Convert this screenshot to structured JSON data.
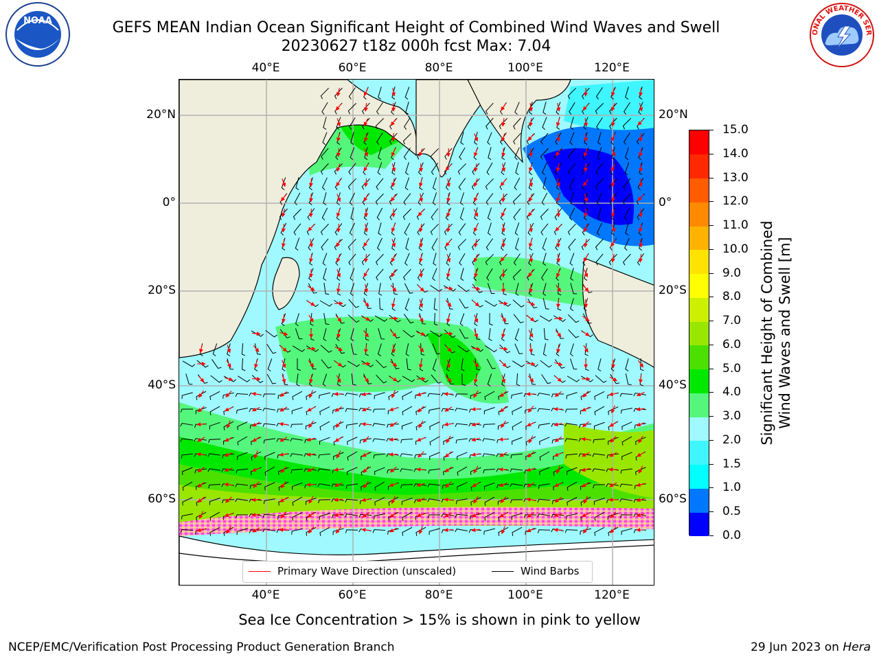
{
  "header": {
    "title_line1": "GEFS MEAN Indian Ocean Significant Height of Combined Wind Waves and Swell",
    "title_line2": "20230627 t18z 000h fcst   Max: 7.04"
  },
  "logos": {
    "noaa": {
      "text": "NOAA",
      "ring_text": "NATIONAL OCEANIC AND ATMOSPHERIC ADMINISTRATION · U.S. DEPARTMENT OF COMMERCE"
    },
    "nws": {
      "ring_text": "NATIONAL WEATHER SERVICE"
    }
  },
  "map": {
    "lon_labels": [
      "40°E",
      "60°E",
      "80°E",
      "100°E",
      "120°E"
    ],
    "lat_labels": [
      "20°N",
      "0°",
      "20°S",
      "40°S",
      "60°S"
    ],
    "extent": {
      "lon_min": 20,
      "lon_max": 130,
      "lat_min": -75,
      "lat_max": 26
    },
    "colors": {
      "land": "#efeedd",
      "ocean_2_3m": "#9ff9ff",
      "ocean_3_4m": "#54f77c",
      "ocean_4_5m": "#00e800",
      "grid": "#b0b0b0",
      "wave_arrow": "#ff0000",
      "wind_barb": "#000000"
    }
  },
  "colorbar": {
    "label_line1": "Significant Height of Combined",
    "label_line2": "Wind Waves and Swell [m]",
    "ticks": [
      "0.0",
      "0.5",
      "1.0",
      "1.5",
      "2.0",
      "3.0",
      "4.0",
      "5.0",
      "6.0",
      "7.0",
      "8.0",
      "9.0",
      "10.0",
      "11.0",
      "12.0",
      "13.0",
      "14.0",
      "15.0"
    ],
    "colors": [
      "#0000ff",
      "#0077ff",
      "#00ffff",
      "#3ff5ff",
      "#9ff9ff",
      "#54f77c",
      "#00e800",
      "#4ce000",
      "#99e600",
      "#ccf000",
      "#ffff00",
      "#ffe300",
      "#ffb300",
      "#ff8a00",
      "#ff5c00",
      "#ff2900",
      "#ff0000"
    ]
  },
  "legend": {
    "wave_label": "Primary Wave Direction (unscaled)",
    "wind_label": "Wind Barbs"
  },
  "note": "Sea Ice Concentration > 15% is shown in pink to yellow",
  "footer": {
    "left": "NCEP/EMC/Verification Post Processing Product Generation Branch",
    "right_date": "29 Jun 2023 on ",
    "right_host": "Hera"
  }
}
